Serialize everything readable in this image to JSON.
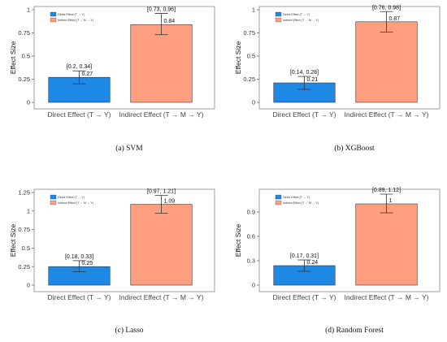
{
  "colors": {
    "direct": "#1E88E5",
    "indirect": "#FF9F7F",
    "frame": "#888888",
    "errorbar": "#333333"
  },
  "chart_data": [
    {
      "type": "bar",
      "caption": "(a) SVM",
      "ylabel": "Effect Size",
      "categories": [
        "Direct Effect (T → Y)",
        "Indirect Effect (T → M → Y)"
      ],
      "values": [
        0.27,
        0.84
      ],
      "value_labels": [
        "0.27",
        "0.84"
      ],
      "ci": [
        [
          0.2,
          0.34
        ],
        [
          0.73,
          0.96
        ]
      ],
      "ci_labels": [
        "[0.2, 0.34]",
        "[0.73, 0.96]"
      ],
      "ylim": [
        0,
        1
      ],
      "yticks": [
        0,
        0.25,
        0.5,
        0.75,
        1
      ],
      "ytick_labels": [
        "0",
        "0.25",
        "0.5",
        "0.75",
        "1"
      ],
      "legend": [
        "Direct Effect (T → Y)",
        "Indirect Effect (T → M → Y)"
      ],
      "legend_position": "top-left",
      "grid": false
    },
    {
      "type": "bar",
      "caption": "(b) XGBoost",
      "ylabel": "Effect Size",
      "categories": [
        "Direct Effect (T → Y)",
        "Indirect Effect (T → M → Y)"
      ],
      "values": [
        0.21,
        0.87
      ],
      "value_labels": [
        "0.21",
        "0.87"
      ],
      "ci": [
        [
          0.14,
          0.28
        ],
        [
          0.76,
          0.98
        ]
      ],
      "ci_labels": [
        "[0.14, 0.28]",
        "[0.76, 0.98]"
      ],
      "ylim": [
        0,
        1
      ],
      "yticks": [
        0,
        0.25,
        0.5,
        0.75,
        1
      ],
      "ytick_labels": [
        "0",
        "0.25",
        "0.5",
        "0.75",
        "1"
      ],
      "legend": [
        "Direct Effect (T → Y)",
        "Indirect Effect (T → M → Y)"
      ],
      "legend_position": "top-left",
      "grid": false
    },
    {
      "type": "bar",
      "caption": "(c) Lasso",
      "ylabel": "Effect Size",
      "categories": [
        "Direct Effect (T → Y)",
        "Indirect Effect (T → M → Y)"
      ],
      "values": [
        0.25,
        1.09
      ],
      "value_labels": [
        "0.25",
        "1.09"
      ],
      "ci": [
        [
          0.18,
          0.33
        ],
        [
          0.97,
          1.21
        ]
      ],
      "ci_labels": [
        "[0.18, 0.33]",
        "[0.97, 1.21]"
      ],
      "ylim": [
        0,
        1.25
      ],
      "yticks": [
        0,
        0.25,
        0.5,
        0.75,
        1,
        1.25
      ],
      "ytick_labels": [
        "0",
        "0.25",
        "0.5",
        "0.75",
        "1",
        "1.25"
      ],
      "legend": [
        "Direct Effect (T → Y)",
        "Indirect Effect (T → M → Y)"
      ],
      "legend_position": "top-left",
      "grid": false
    },
    {
      "type": "bar",
      "caption": "(d) Random Forest",
      "ylabel": "Effect Size",
      "categories": [
        "Direct Effect (T → Y)",
        "Indirect Effect (T → M → Y)"
      ],
      "values": [
        0.24,
        1.0
      ],
      "value_labels": [
        "0.24",
        "1"
      ],
      "ci": [
        [
          0.17,
          0.31
        ],
        [
          0.89,
          1.12
        ]
      ],
      "ci_labels": [
        "[0.17, 0.31]",
        "[0.89, 1.12]"
      ],
      "ylim": [
        0,
        1.14
      ],
      "yticks": [
        0,
        0.3,
        0.6,
        0.9
      ],
      "ytick_labels": [
        "0",
        "0.3",
        "0.6",
        "0.9"
      ],
      "legend": [
        "Direct Effect (T → Y)",
        "Indirect Effect (T → M → Y)"
      ],
      "legend_position": "top-left",
      "grid": false
    }
  ]
}
